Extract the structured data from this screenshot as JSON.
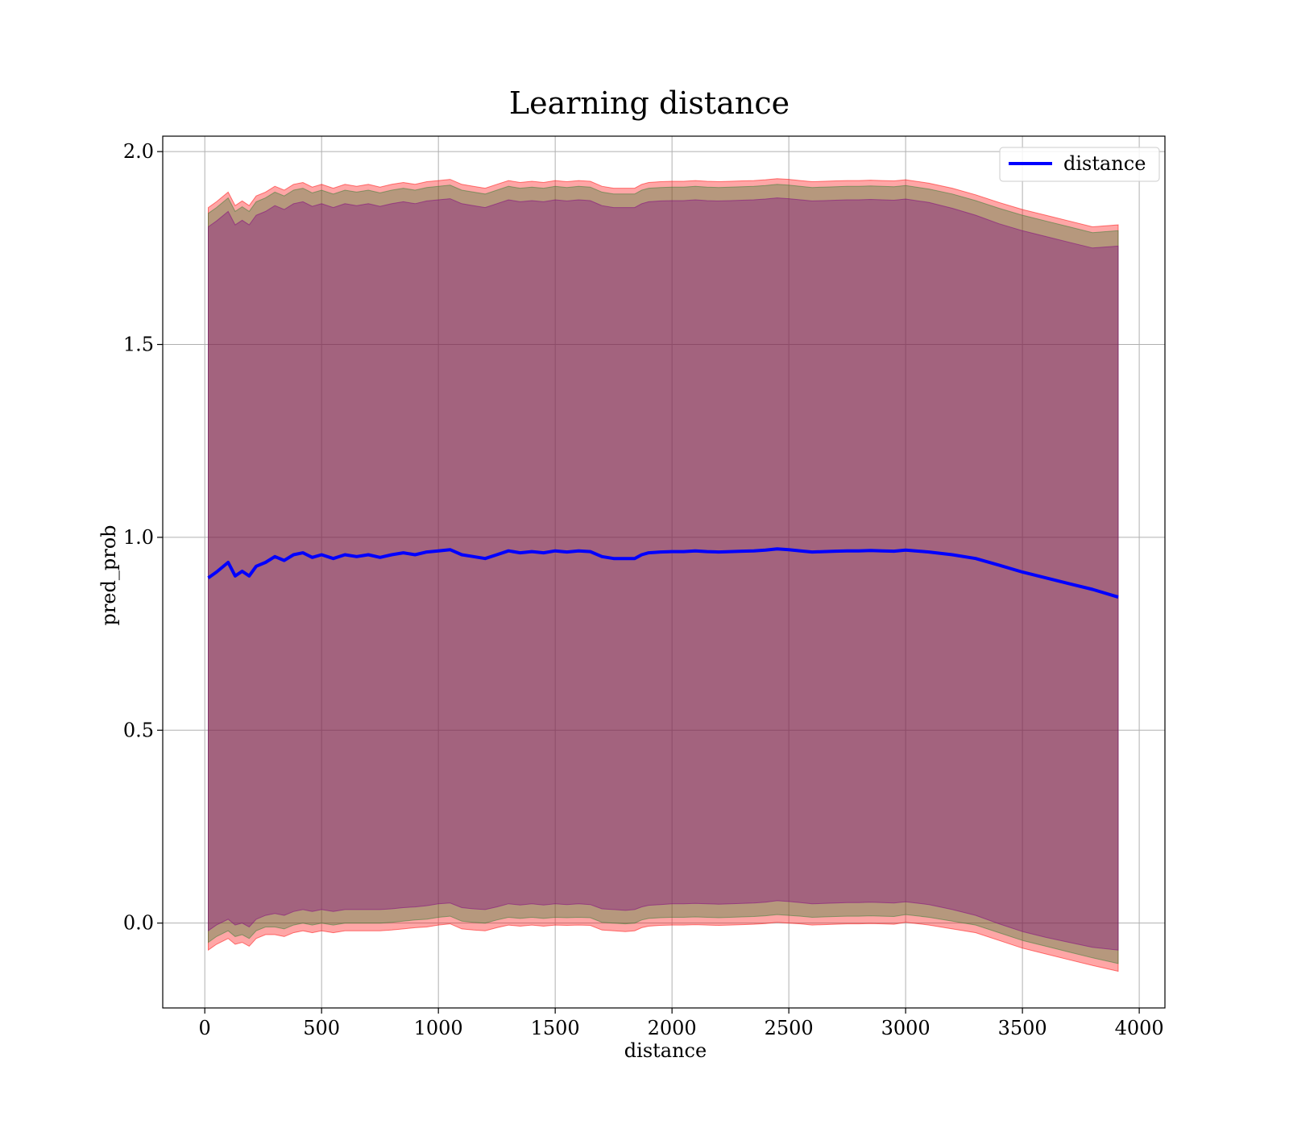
{
  "chart_data": {
    "type": "line",
    "title": "Learning distance",
    "xlabel": "distance",
    "ylabel": "pred_prob",
    "xlim": [
      -180,
      4110
    ],
    "ylim": [
      -0.22,
      2.04
    ],
    "xticks": [
      0,
      500,
      1000,
      1500,
      2000,
      2500,
      3000,
      3500,
      4000
    ],
    "xtick_labels": [
      "0",
      "500",
      "1000",
      "1500",
      "2000",
      "2500",
      "3000",
      "3500",
      "4000"
    ],
    "yticks": [
      0.0,
      0.5,
      1.0,
      1.5,
      2.0
    ],
    "ytick_labels": [
      "0.0",
      "0.5",
      "1.0",
      "1.5",
      "2.0"
    ],
    "grid": true,
    "legend_position": "top-right",
    "series": [
      {
        "name": "distance",
        "color": "#0000ff",
        "x": [
          15,
          50,
          100,
          130,
          160,
          190,
          220,
          260,
          300,
          340,
          380,
          420,
          460,
          500,
          550,
          600,
          650,
          700,
          750,
          800,
          850,
          900,
          950,
          1000,
          1050,
          1100,
          1150,
          1200,
          1250,
          1300,
          1350,
          1400,
          1450,
          1500,
          1550,
          1600,
          1650,
          1700,
          1750,
          1800,
          1840,
          1870,
          1900,
          1950,
          2000,
          2050,
          2100,
          2150,
          2200,
          2250,
          2300,
          2350,
          2400,
          2450,
          2500,
          2550,
          2600,
          2650,
          2700,
          2750,
          2800,
          2850,
          2900,
          2950,
          3000,
          3100,
          3200,
          3300,
          3400,
          3500,
          3600,
          3700,
          3800,
          3910
        ],
        "y": [
          0.895,
          0.91,
          0.935,
          0.9,
          0.912,
          0.9,
          0.925,
          0.935,
          0.95,
          0.94,
          0.955,
          0.96,
          0.948,
          0.955,
          0.945,
          0.955,
          0.95,
          0.955,
          0.948,
          0.955,
          0.96,
          0.955,
          0.962,
          0.965,
          0.968,
          0.955,
          0.95,
          0.945,
          0.955,
          0.965,
          0.96,
          0.963,
          0.96,
          0.965,
          0.962,
          0.965,
          0.963,
          0.95,
          0.945,
          0.945,
          0.945,
          0.955,
          0.96,
          0.962,
          0.963,
          0.963,
          0.965,
          0.963,
          0.962,
          0.963,
          0.964,
          0.965,
          0.967,
          0.97,
          0.968,
          0.965,
          0.962,
          0.963,
          0.964,
          0.965,
          0.965,
          0.966,
          0.965,
          0.964,
          0.967,
          0.962,
          0.955,
          0.945,
          0.928,
          0.91,
          0.895,
          0.88,
          0.865,
          0.845
        ]
      }
    ],
    "bands": [
      {
        "color": "#ff0000",
        "opacity": 0.35,
        "lower": [
          -0.07,
          -0.055,
          -0.04,
          -0.055,
          -0.05,
          -0.06,
          -0.04,
          -0.03,
          -0.03,
          -0.035,
          -0.025,
          -0.02,
          -0.025,
          -0.02,
          -0.025,
          -0.02,
          -0.02,
          -0.02,
          -0.02,
          -0.018,
          -0.015,
          -0.012,
          -0.01,
          -0.005,
          -0.002,
          -0.015,
          -0.018,
          -0.02,
          -0.012,
          -0.005,
          -0.008,
          -0.005,
          -0.008,
          -0.005,
          -0.006,
          -0.005,
          -0.006,
          -0.018,
          -0.02,
          -0.022,
          -0.02,
          -0.012,
          -0.008,
          -0.006,
          -0.005,
          -0.005,
          -0.004,
          -0.005,
          -0.006,
          -0.005,
          -0.004,
          -0.003,
          -0.001,
          0.002,
          0.0,
          -0.002,
          -0.005,
          -0.004,
          -0.003,
          -0.002,
          -0.002,
          -0.001,
          -0.002,
          -0.003,
          0.002,
          -0.005,
          -0.015,
          -0.025,
          -0.045,
          -0.065,
          -0.08,
          -0.095,
          -0.11,
          -0.125
        ],
        "upper": [
          1.855,
          1.87,
          1.895,
          1.86,
          1.872,
          1.86,
          1.885,
          1.895,
          1.91,
          1.9,
          1.915,
          1.92,
          1.908,
          1.915,
          1.905,
          1.915,
          1.91,
          1.915,
          1.908,
          1.915,
          1.92,
          1.915,
          1.922,
          1.925,
          1.928,
          1.915,
          1.91,
          1.905,
          1.915,
          1.925,
          1.92,
          1.923,
          1.92,
          1.925,
          1.922,
          1.925,
          1.923,
          1.91,
          1.905,
          1.905,
          1.905,
          1.915,
          1.92,
          1.922,
          1.923,
          1.923,
          1.925,
          1.923,
          1.922,
          1.923,
          1.924,
          1.925,
          1.927,
          1.93,
          1.928,
          1.925,
          1.922,
          1.923,
          1.924,
          1.925,
          1.925,
          1.926,
          1.925,
          1.924,
          1.927,
          1.918,
          1.905,
          1.888,
          1.868,
          1.85,
          1.835,
          1.82,
          1.805,
          1.81
        ]
      },
      {
        "color": "#2e7d32",
        "opacity": 0.35,
        "lower": [
          -0.05,
          -0.035,
          -0.02,
          -0.035,
          -0.03,
          -0.04,
          -0.02,
          -0.01,
          -0.01,
          -0.015,
          -0.005,
          0.0,
          -0.005,
          0.0,
          -0.005,
          0.0,
          0.0,
          0.0,
          0.0,
          0.002,
          0.005,
          0.008,
          0.01,
          0.015,
          0.018,
          0.005,
          0.002,
          0.0,
          0.008,
          0.015,
          0.012,
          0.015,
          0.012,
          0.015,
          0.014,
          0.015,
          0.014,
          0.002,
          0.0,
          -0.002,
          0.0,
          0.008,
          0.012,
          0.014,
          0.015,
          0.015,
          0.016,
          0.015,
          0.014,
          0.015,
          0.016,
          0.017,
          0.019,
          0.022,
          0.02,
          0.018,
          0.015,
          0.016,
          0.017,
          0.018,
          0.018,
          0.019,
          0.018,
          0.017,
          0.022,
          0.015,
          0.005,
          -0.005,
          -0.025,
          -0.045,
          -0.06,
          -0.075,
          -0.09,
          -0.105
        ],
        "upper": [
          1.84,
          1.855,
          1.88,
          1.845,
          1.857,
          1.845,
          1.87,
          1.88,
          1.895,
          1.885,
          1.9,
          1.905,
          1.893,
          1.9,
          1.89,
          1.9,
          1.895,
          1.9,
          1.893,
          1.9,
          1.905,
          1.9,
          1.907,
          1.91,
          1.913,
          1.9,
          1.895,
          1.89,
          1.9,
          1.91,
          1.905,
          1.908,
          1.905,
          1.91,
          1.907,
          1.91,
          1.908,
          1.895,
          1.89,
          1.89,
          1.89,
          1.9,
          1.905,
          1.907,
          1.908,
          1.908,
          1.91,
          1.908,
          1.907,
          1.908,
          1.909,
          1.91,
          1.912,
          1.915,
          1.913,
          1.91,
          1.907,
          1.908,
          1.909,
          1.91,
          1.91,
          1.911,
          1.91,
          1.909,
          1.912,
          1.903,
          1.89,
          1.873,
          1.853,
          1.835,
          1.82,
          1.805,
          1.79,
          1.795
        ]
      },
      {
        "color": "#800080",
        "opacity": 0.35,
        "lower": [
          -0.02,
          -0.005,
          0.01,
          -0.005,
          0.0,
          -0.01,
          0.01,
          0.02,
          0.025,
          0.02,
          0.03,
          0.035,
          0.03,
          0.035,
          0.03,
          0.035,
          0.035,
          0.035,
          0.035,
          0.037,
          0.04,
          0.042,
          0.045,
          0.05,
          0.052,
          0.04,
          0.037,
          0.035,
          0.042,
          0.05,
          0.047,
          0.05,
          0.047,
          0.05,
          0.048,
          0.05,
          0.048,
          0.037,
          0.035,
          0.033,
          0.035,
          0.042,
          0.046,
          0.048,
          0.05,
          0.05,
          0.051,
          0.05,
          0.049,
          0.05,
          0.051,
          0.052,
          0.054,
          0.058,
          0.056,
          0.053,
          0.05,
          0.051,
          0.052,
          0.053,
          0.053,
          0.054,
          0.053,
          0.052,
          0.055,
          0.048,
          0.035,
          0.02,
          -0.002,
          -0.022,
          -0.037,
          -0.05,
          -0.063,
          -0.07
        ],
        "upper": [
          1.805,
          1.82,
          1.845,
          1.81,
          1.822,
          1.81,
          1.835,
          1.845,
          1.86,
          1.85,
          1.865,
          1.87,
          1.858,
          1.865,
          1.855,
          1.865,
          1.86,
          1.865,
          1.858,
          1.865,
          1.87,
          1.865,
          1.872,
          1.875,
          1.878,
          1.865,
          1.86,
          1.855,
          1.865,
          1.875,
          1.87,
          1.873,
          1.87,
          1.875,
          1.872,
          1.875,
          1.873,
          1.86,
          1.855,
          1.855,
          1.855,
          1.865,
          1.87,
          1.872,
          1.873,
          1.873,
          1.875,
          1.873,
          1.872,
          1.873,
          1.874,
          1.875,
          1.877,
          1.88,
          1.878,
          1.875,
          1.872,
          1.873,
          1.874,
          1.875,
          1.875,
          1.876,
          1.875,
          1.874,
          1.877,
          1.868,
          1.853,
          1.835,
          1.813,
          1.795,
          1.78,
          1.765,
          1.75,
          1.755
        ]
      }
    ]
  }
}
